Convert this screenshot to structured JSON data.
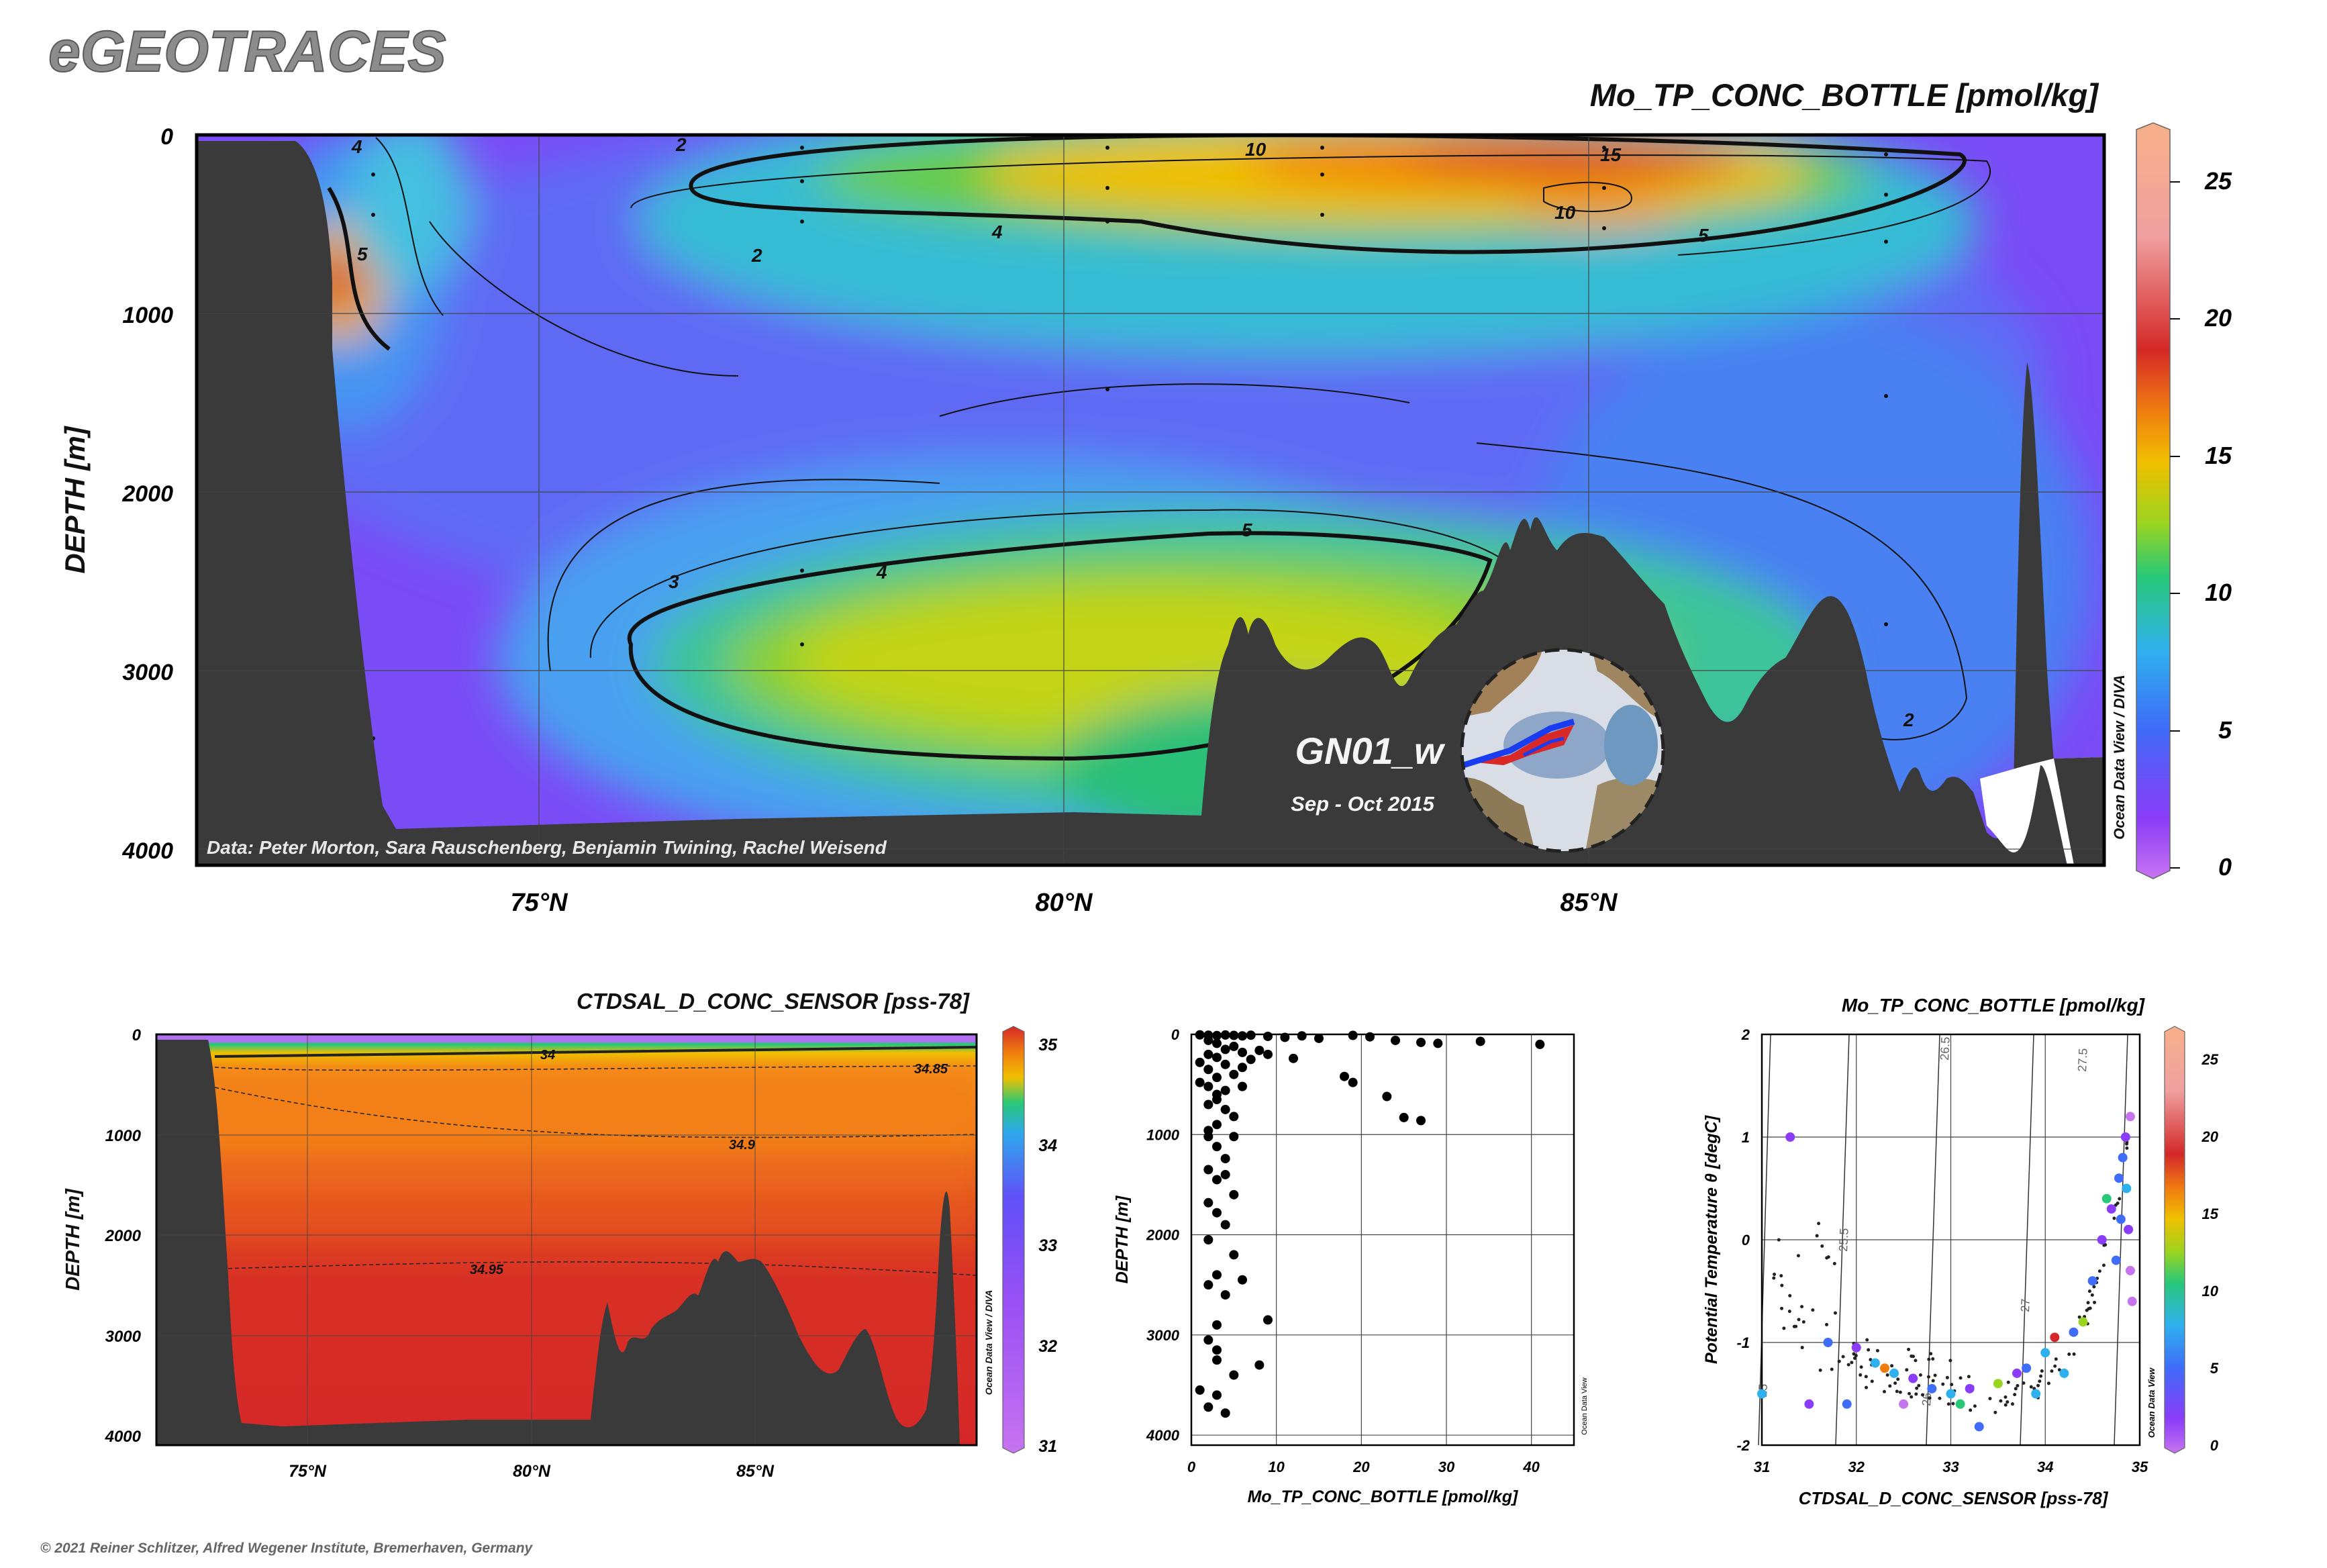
{
  "header": {
    "logo": "eGEOTRACES",
    "copyright": "© 2021 Reiner Schlitzer, Alfred Wegener Institute, Bremerhaven, Germany"
  },
  "colors": {
    "land": "#3a3a3a",
    "scale": [
      "#c774f0",
      "#8a3cf8",
      "#3f6cf8",
      "#2fb0ee",
      "#28c878",
      "#9ad420",
      "#f0c000",
      "#f07c10",
      "#d42828",
      "#f0c0b0",
      "#f7b08a"
    ]
  },
  "main_section": {
    "variable_title": "Mo_TP_CONC_BOTTLE [pmol/kg]",
    "y_axis_label": "DEPTH [m]",
    "y_ticks": [
      "0",
      "1000",
      "2000",
      "3000",
      "4000"
    ],
    "x_ticks": [
      "75°N",
      "80°N",
      "85°N"
    ],
    "data_credit": "Data: Peter Morton, Sara Rauschenberg, Benjamin Twining, Rachel Weisend",
    "cruise_label": "GN01_w",
    "cruise_dates": "Sep - Oct 2015",
    "watermark": "Ocean Data View / DIVA",
    "contour_labels": [
      "2",
      "4",
      "5",
      "10",
      "15",
      "10",
      "4",
      "5",
      "2",
      "3",
      "4",
      "5",
      "2",
      "2"
    ],
    "colorbar_ticks": [
      "25",
      "20",
      "15",
      "10",
      "5",
      "0"
    ]
  },
  "salinity_section": {
    "variable_title": "CTDSAL_D_CONC_SENSOR [pss-78]",
    "y_axis_label": "DEPTH [m]",
    "y_ticks": [
      "0",
      "1000",
      "2000",
      "3000",
      "4000"
    ],
    "x_ticks": [
      "75°N",
      "80°N",
      "85°N"
    ],
    "contour_labels": [
      "34",
      "34.85",
      "34.9",
      "34.95"
    ],
    "colorbar_ticks": [
      "35",
      "34",
      "33",
      "32",
      "31"
    ],
    "watermark": "Ocean Data View / DIVA"
  },
  "chart_data": [
    {
      "type": "heatmap",
      "title": "Mo_TP_CONC_BOTTLE [pmol/kg]",
      "xlabel": "",
      "ylabel": "DEPTH [m]",
      "xlim": [
        71.5,
        89.6
      ],
      "ylim": [
        4100,
        0
      ],
      "clim": [
        0,
        26
      ],
      "contour_levels": [
        2,
        3,
        4,
        5,
        10,
        15
      ]
    },
    {
      "type": "heatmap",
      "title": "CTDSAL_D_CONC_SENSOR [pss-78]",
      "xlabel": "",
      "ylabel": "DEPTH [m]",
      "xlim": [
        71.5,
        89.6
      ],
      "ylim": [
        4100,
        0
      ],
      "clim": [
        31,
        35
      ],
      "contour_levels": [
        34,
        34.85,
        34.9,
        34.95
      ]
    },
    {
      "type": "scatter",
      "title": "",
      "xlabel": "Mo_TP_CONC_BOTTLE [pmol/kg]",
      "ylabel": "DEPTH [m]",
      "xlim": [
        0,
        45
      ],
      "ylim": [
        4100,
        0
      ],
      "x_ticks": [
        "0",
        "10",
        "20",
        "30",
        "40"
      ],
      "y_ticks": [
        "0",
        "1000",
        "2000",
        "3000",
        "4000"
      ],
      "watermark": "Ocean Data View",
      "points": [
        {
          "x": 1,
          "y": 5
        },
        {
          "x": 2,
          "y": 8
        },
        {
          "x": 3,
          "y": 12
        },
        {
          "x": 4,
          "y": 6
        },
        {
          "x": 5,
          "y": 10
        },
        {
          "x": 6,
          "y": 15
        },
        {
          "x": 7,
          "y": 8
        },
        {
          "x": 9,
          "y": 20
        },
        {
          "x": 11,
          "y": 30
        },
        {
          "x": 13,
          "y": 15
        },
        {
          "x": 15,
          "y": 40
        },
        {
          "x": 19,
          "y": 10
        },
        {
          "x": 21,
          "y": 25
        },
        {
          "x": 24,
          "y": 60
        },
        {
          "x": 27,
          "y": 80
        },
        {
          "x": 29,
          "y": 90
        },
        {
          "x": 34,
          "y": 70
        },
        {
          "x": 41,
          "y": 100
        },
        {
          "x": 2,
          "y": 60
        },
        {
          "x": 3,
          "y": 90
        },
        {
          "x": 5,
          "y": 120
        },
        {
          "x": 4,
          "y": 150
        },
        {
          "x": 2,
          "y": 200
        },
        {
          "x": 6,
          "y": 180
        },
        {
          "x": 8,
          "y": 160
        },
        {
          "x": 3,
          "y": 230
        },
        {
          "x": 1,
          "y": 280
        },
        {
          "x": 4,
          "y": 300
        },
        {
          "x": 2,
          "y": 350
        },
        {
          "x": 5,
          "y": 400
        },
        {
          "x": 3,
          "y": 430
        },
        {
          "x": 7,
          "y": 250
        },
        {
          "x": 1,
          "y": 480
        },
        {
          "x": 2,
          "y": 520
        },
        {
          "x": 4,
          "y": 560
        },
        {
          "x": 3,
          "y": 600
        },
        {
          "x": 6,
          "y": 330
        },
        {
          "x": 9,
          "y": 200
        },
        {
          "x": 12,
          "y": 240
        },
        {
          "x": 3,
          "y": 650
        },
        {
          "x": 2,
          "y": 700
        },
        {
          "x": 4,
          "y": 750
        },
        {
          "x": 5,
          "y": 820
        },
        {
          "x": 3,
          "y": 900
        },
        {
          "x": 2,
          "y": 960
        },
        {
          "x": 18,
          "y": 420
        },
        {
          "x": 19,
          "y": 480
        },
        {
          "x": 23,
          "y": 620
        },
        {
          "x": 25,
          "y": 830
        },
        {
          "x": 27,
          "y": 860
        },
        {
          "x": 2,
          "y": 1020
        },
        {
          "x": 3,
          "y": 1120
        },
        {
          "x": 4,
          "y": 1240
        },
        {
          "x": 2,
          "y": 1350
        },
        {
          "x": 3,
          "y": 1450
        },
        {
          "x": 5,
          "y": 1600
        },
        {
          "x": 2,
          "y": 1680
        },
        {
          "x": 3,
          "y": 1780
        },
        {
          "x": 4,
          "y": 1900
        },
        {
          "x": 2,
          "y": 2050
        },
        {
          "x": 5,
          "y": 2200
        },
        {
          "x": 3,
          "y": 2400
        },
        {
          "x": 2,
          "y": 2500
        },
        {
          "x": 4,
          "y": 2600
        },
        {
          "x": 9,
          "y": 2850
        },
        {
          "x": 3,
          "y": 2900
        },
        {
          "x": 2,
          "y": 3050
        },
        {
          "x": 3,
          "y": 3250
        },
        {
          "x": 5,
          "y": 3400
        },
        {
          "x": 8,
          "y": 3300
        },
        {
          "x": 3,
          "y": 3600
        },
        {
          "x": 2,
          "y": 3720
        },
        {
          "x": 4,
          "y": 3780
        },
        {
          "x": 1,
          "y": 3550
        },
        {
          "x": 3,
          "y": 3150
        },
        {
          "x": 6,
          "y": 2450
        },
        {
          "x": 5,
          "y": 1020
        },
        {
          "x": 4,
          "y": 1400
        },
        {
          "x": 6,
          "y": 520
        }
      ]
    },
    {
      "type": "scatter",
      "title": "Mo_TP_CONC_BOTTLE [pmol/kg]",
      "xlabel": "CTDSAL_D_CONC_SENSOR [pss-78]",
      "ylabel": "Potential Temperature θ [degC]",
      "xlim": [
        31,
        35
      ],
      "ylim": [
        -2,
        2
      ],
      "x_ticks": [
        "31",
        "32",
        "33",
        "34",
        "35"
      ],
      "y_ticks": [
        "2",
        "1",
        "0",
        "-1",
        "-2"
      ],
      "clim": [
        0,
        26
      ],
      "colorbar_ticks": [
        "25",
        "20",
        "15",
        "10",
        "5",
        "0"
      ],
      "watermark": "Ocean Data View",
      "isopycnals": [
        "25",
        "25.5",
        "26",
        "26.5",
        "27",
        "27.5"
      ],
      "points": [
        {
          "x": 31.0,
          "y": -1.5,
          "c": 8
        },
        {
          "x": 31.3,
          "y": 1.0,
          "c": 3
        },
        {
          "x": 31.5,
          "y": -1.6,
          "c": 2
        },
        {
          "x": 31.7,
          "y": -1.0,
          "c": 4
        },
        {
          "x": 31.9,
          "y": -1.6,
          "c": 6
        },
        {
          "x": 32.0,
          "y": -1.05,
          "c": 3
        },
        {
          "x": 32.2,
          "y": -1.2,
          "c": 7
        },
        {
          "x": 32.4,
          "y": -1.3,
          "c": 9
        },
        {
          "x": 32.6,
          "y": -1.35,
          "c": 2
        },
        {
          "x": 32.8,
          "y": -1.45,
          "c": 5
        },
        {
          "x": 33.0,
          "y": -1.5,
          "c": 8
        },
        {
          "x": 33.2,
          "y": -1.45,
          "c": 3
        },
        {
          "x": 33.3,
          "y": -1.82,
          "c": 5
        },
        {
          "x": 33.5,
          "y": -1.4,
          "c": 12
        },
        {
          "x": 33.7,
          "y": -1.3,
          "c": 2
        },
        {
          "x": 33.8,
          "y": -1.25,
          "c": 6
        },
        {
          "x": 34.0,
          "y": -1.1,
          "c": 7
        },
        {
          "x": 34.1,
          "y": -0.95,
          "c": 20
        },
        {
          "x": 34.2,
          "y": -1.3,
          "c": 9
        },
        {
          "x": 34.4,
          "y": -0.8,
          "c": 13
        },
        {
          "x": 34.5,
          "y": -0.4,
          "c": 6
        },
        {
          "x": 34.6,
          "y": 0.0,
          "c": 3
        },
        {
          "x": 34.7,
          "y": 0.3,
          "c": 2
        },
        {
          "x": 34.78,
          "y": 0.6,
          "c": 4
        },
        {
          "x": 34.82,
          "y": 0.8,
          "c": 5
        },
        {
          "x": 34.85,
          "y": 1.0,
          "c": 3
        },
        {
          "x": 34.9,
          "y": 1.2,
          "c": 1
        },
        {
          "x": 34.88,
          "y": 0.1,
          "c": 2
        },
        {
          "x": 34.9,
          "y": -0.3,
          "c": 1
        },
        {
          "x": 34.92,
          "y": -0.6,
          "c": 1
        },
        {
          "x": 34.86,
          "y": 0.5,
          "c": 7
        },
        {
          "x": 34.8,
          "y": 0.2,
          "c": 4
        },
        {
          "x": 34.75,
          "y": -0.2,
          "c": 5
        },
        {
          "x": 32.5,
          "y": -1.6,
          "c": 0
        },
        {
          "x": 33.1,
          "y": -1.6,
          "c": 11
        },
        {
          "x": 32.3,
          "y": -1.25,
          "c": 18
        },
        {
          "x": 33.9,
          "y": -1.5,
          "c": 8
        },
        {
          "x": 34.3,
          "y": -0.9,
          "c": 6
        },
        {
          "x": 34.65,
          "y": 0.4,
          "c": 10
        }
      ]
    }
  ]
}
